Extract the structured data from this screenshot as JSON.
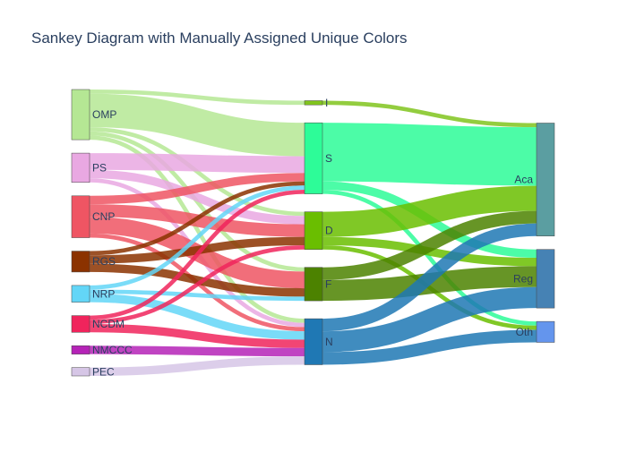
{
  "chart_data": {
    "type": "sankey",
    "title": "Sankey Diagram with Manually Assigned Unique Colors",
    "columns": [
      [
        "OMP",
        "PS",
        "CNP",
        "RGS",
        "NRP",
        "NCDM",
        "NMCCC",
        "PEC"
      ],
      [
        "I",
        "S",
        "D",
        "F",
        "N"
      ],
      [
        "Aca",
        "Reg",
        "Oth"
      ]
    ],
    "nodes": [
      {
        "name": "OMP",
        "color": "#b5e794"
      },
      {
        "name": "PS",
        "color": "#e9a8e2"
      },
      {
        "name": "CNP",
        "color": "#ef5563"
      },
      {
        "name": "RGS",
        "color": "#8b3200"
      },
      {
        "name": "NRP",
        "color": "#63d6f7"
      },
      {
        "name": "NCDM",
        "color": "#f0245c"
      },
      {
        "name": "NMCCC",
        "color": "#b523b7"
      },
      {
        "name": "PEC",
        "color": "#d6c6e6"
      },
      {
        "name": "I",
        "color": "#80c41d"
      },
      {
        "name": "S",
        "color": "#2dfc98"
      },
      {
        "name": "D",
        "color": "#6abe00"
      },
      {
        "name": "F",
        "color": "#4c8200"
      },
      {
        "name": "N",
        "color": "#1f78b4"
      },
      {
        "name": "Aca",
        "color": "#5b9ea1"
      },
      {
        "name": "Reg",
        "color": "#4682b4"
      },
      {
        "name": "Oth",
        "color": "#6495ed"
      }
    ],
    "links": [
      {
        "source": "OMP",
        "target": "I",
        "value": 1
      },
      {
        "source": "OMP",
        "target": "S",
        "value": 8
      },
      {
        "source": "OMP",
        "target": "D",
        "value": 1
      },
      {
        "source": "OMP",
        "target": "F",
        "value": 1
      },
      {
        "source": "OMP",
        "target": "N",
        "value": 1
      },
      {
        "source": "PS",
        "target": "S",
        "value": 4
      },
      {
        "source": "PS",
        "target": "D",
        "value": 2
      },
      {
        "source": "PS",
        "target": "N",
        "value": 1
      },
      {
        "source": "CNP",
        "target": "S",
        "value": 2
      },
      {
        "source": "CNP",
        "target": "D",
        "value": 3
      },
      {
        "source": "CNP",
        "target": "F",
        "value": 4
      },
      {
        "source": "CNP",
        "target": "N",
        "value": 1
      },
      {
        "source": "RGS",
        "target": "S",
        "value": 1
      },
      {
        "source": "RGS",
        "target": "D",
        "value": 2
      },
      {
        "source": "RGS",
        "target": "F",
        "value": 2
      },
      {
        "source": "NRP",
        "target": "S",
        "value": 1
      },
      {
        "source": "NRP",
        "target": "F",
        "value": 1
      },
      {
        "source": "NRP",
        "target": "N",
        "value": 2
      },
      {
        "source": "NCDM",
        "target": "S",
        "value": 1
      },
      {
        "source": "NCDM",
        "target": "D",
        "value": 1
      },
      {
        "source": "NCDM",
        "target": "N",
        "value": 2
      },
      {
        "source": "NMCCC",
        "target": "N",
        "value": 2
      },
      {
        "source": "PEC",
        "target": "N",
        "value": 2
      },
      {
        "source": "I",
        "target": "Aca",
        "value": 1
      },
      {
        "source": "S",
        "target": "Aca",
        "value": 14
      },
      {
        "source": "S",
        "target": "Reg",
        "value": 2
      },
      {
        "source": "S",
        "target": "Oth",
        "value": 1
      },
      {
        "source": "D",
        "target": "Aca",
        "value": 6
      },
      {
        "source": "D",
        "target": "Reg",
        "value": 2
      },
      {
        "source": "D",
        "target": "Oth",
        "value": 1
      },
      {
        "source": "F",
        "target": "Aca",
        "value": 3
      },
      {
        "source": "F",
        "target": "Reg",
        "value": 5
      },
      {
        "source": "N",
        "target": "Aca",
        "value": 3
      },
      {
        "source": "N",
        "target": "Reg",
        "value": 5
      },
      {
        "source": "N",
        "target": "Oth",
        "value": 3
      }
    ]
  }
}
